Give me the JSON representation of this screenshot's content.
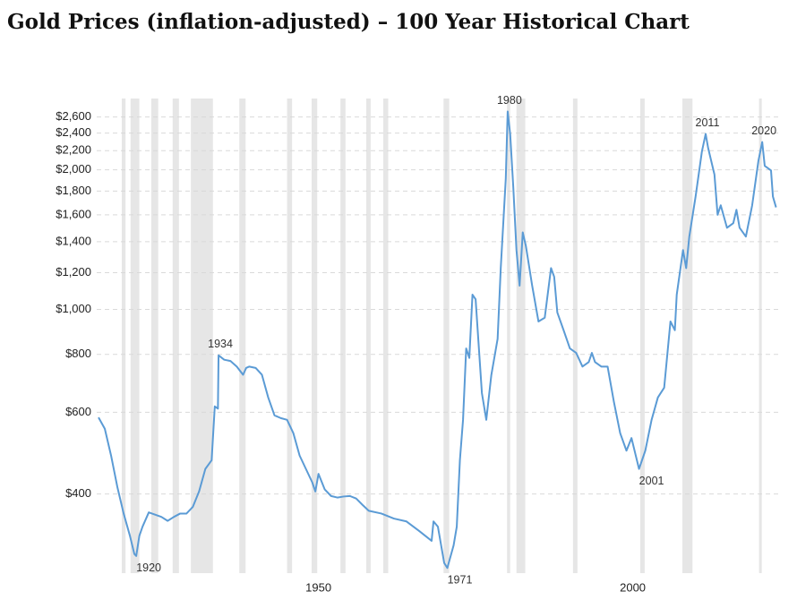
{
  "chart_data": {
    "type": "line",
    "title": "Gold Prices (inflation-adjusted) – 100 Year Historical Chart",
    "log_scale": true,
    "grid": true,
    "color": "#5b9bd5",
    "recession_color": "#e6e6e6",
    "xlim": [
      1915,
      2023
    ],
    "xticks": [
      1950,
      2000
    ],
    "ylim": [
      270,
      2850
    ],
    "yticks": [
      {
        "value": 400,
        "label": "$400"
      },
      {
        "value": 600,
        "label": "$600"
      },
      {
        "value": 800,
        "label": "$800"
      },
      {
        "value": 1000,
        "label": "$1,000"
      },
      {
        "value": 1200,
        "label": "$1,200"
      },
      {
        "value": 1400,
        "label": "$1,400"
      },
      {
        "value": 1600,
        "label": "$1,600"
      },
      {
        "value": 1800,
        "label": "$1,800"
      },
      {
        "value": 2000,
        "label": "$2,000"
      },
      {
        "value": 2200,
        "label": "$2,200"
      },
      {
        "value": 2400,
        "label": "$2,400"
      },
      {
        "value": 2600,
        "label": "$2,600"
      }
    ],
    "recessions": [
      [
        1918.7,
        1919.3
      ],
      [
        1920.1,
        1921.5
      ],
      [
        1923.4,
        1924.5
      ],
      [
        1926.8,
        1927.8
      ],
      [
        1929.7,
        1933.2
      ],
      [
        1937.4,
        1938.4
      ],
      [
        1945.0,
        1945.8
      ],
      [
        1948.9,
        1949.8
      ],
      [
        1953.5,
        1954.3
      ],
      [
        1957.6,
        1958.3
      ],
      [
        1960.3,
        1961.1
      ],
      [
        1969.9,
        1970.8
      ],
      [
        1980.0,
        1980.5
      ],
      [
        1981.5,
        1982.9
      ],
      [
        1990.5,
        1991.2
      ],
      [
        2001.2,
        2001.9
      ],
      [
        2007.9,
        2009.5
      ],
      [
        2020.1,
        2020.4
      ]
    ],
    "x": [
      1915.0,
      1916.0,
      1917.0,
      1918.0,
      1919.0,
      1920.0,
      1920.7,
      1921.0,
      1921.5,
      1922.0,
      1923.0,
      1925.0,
      1926.0,
      1927.0,
      1928.0,
      1929.0,
      1930.0,
      1931.0,
      1932.0,
      1933.0,
      1933.5,
      1934.0,
      1934.1,
      1935.0,
      1936.0,
      1937.0,
      1938.0,
      1938.5,
      1939.0,
      1940.0,
      1941.0,
      1942.0,
      1943.0,
      1944.0,
      1945.0,
      1946.0,
      1947.0,
      1948.0,
      1949.0,
      1949.5,
      1950.0,
      1951.0,
      1952.0,
      1953.0,
      1954.0,
      1955.0,
      1956.0,
      1957.0,
      1958.0,
      1960.0,
      1962.0,
      1964.0,
      1966.0,
      1968.0,
      1968.3,
      1969.0,
      1970.0,
      1970.5,
      1971.5,
      1972.0,
      1972.5,
      1973.0,
      1973.5,
      1974.0,
      1974.5,
      1975.0,
      1976.0,
      1976.7,
      1977.5,
      1978.5,
      1979.0,
      1979.8,
      1980.1,
      1980.5,
      1981.0,
      1981.5,
      1982.0,
      1982.5,
      1983.0,
      1984.0,
      1985.0,
      1986.0,
      1987.0,
      1987.5,
      1988.0,
      1989.0,
      1990.0,
      1991.0,
      1992.0,
      1993.0,
      1993.5,
      1994.0,
      1995.0,
      1996.0,
      1997.0,
      1998.0,
      1999.0,
      1999.8,
      2001.0,
      2002.0,
      2003.0,
      2004.0,
      2005.0,
      2006.0,
      2006.7,
      2007.0,
      2008.0,
      2008.5,
      2009.0,
      2010.0,
      2011.0,
      2011.6,
      2012.0,
      2013.0,
      2013.5,
      2014.0,
      2015.0,
      2016.0,
      2016.5,
      2017.0,
      2018.0,
      2019.0,
      2020.0,
      2020.6,
      2021.0,
      2022.0,
      2022.3,
      2022.8
    ],
    "values": [
      585,
      553,
      484,
      414,
      363,
      325,
      297,
      294,
      325,
      340,
      365,
      357,
      350,
      357,
      363,
      363,
      375,
      405,
      453,
      473,
      618,
      611,
      796,
      779,
      774,
      753,
      723,
      748,
      753,
      748,
      723,
      646,
      591,
      583,
      578,
      541,
      484,
      453,
      424,
      405,
      442,
      409,
      396,
      393,
      395,
      396,
      391,
      379,
      368,
      363,
      354,
      349,
      333,
      317,
      349,
      340,
      284,
      277,
      310,
      340,
      473,
      578,
      824,
      786,
      1076,
      1052,
      660,
      578,
      722,
      864,
      1228,
      1915,
      2672,
      2390,
      1829,
      1343,
      1125,
      1466,
      1370,
      1125,
      942,
      960,
      1228,
      1176,
      985,
      902,
      824,
      806,
      753,
      770,
      806,
      770,
      753,
      753,
      632,
      541,
      496,
      528,
      453,
      496,
      578,
      646,
      678,
      942,
      902,
      1076,
      1343,
      1228,
      1436,
      1752,
      2189,
      2390,
      2228,
      1954,
      1600,
      1677,
      1500,
      1535,
      1640,
      1500,
      1436,
      1677,
      2093,
      2296,
      2040,
      1994,
      1752,
      1660
    ],
    "annotations": [
      {
        "text": "1920",
        "x": 1921.0
      },
      {
        "text": "1934",
        "x": 1934.1
      },
      {
        "text": "1971",
        "x": 1970.5
      },
      {
        "text": "1980",
        "x": 1980.1
      },
      {
        "text": "2001",
        "x": 2001.0
      },
      {
        "text": "2011",
        "x": 2011.6
      },
      {
        "text": "2020",
        "x": 2020.6
      }
    ]
  }
}
